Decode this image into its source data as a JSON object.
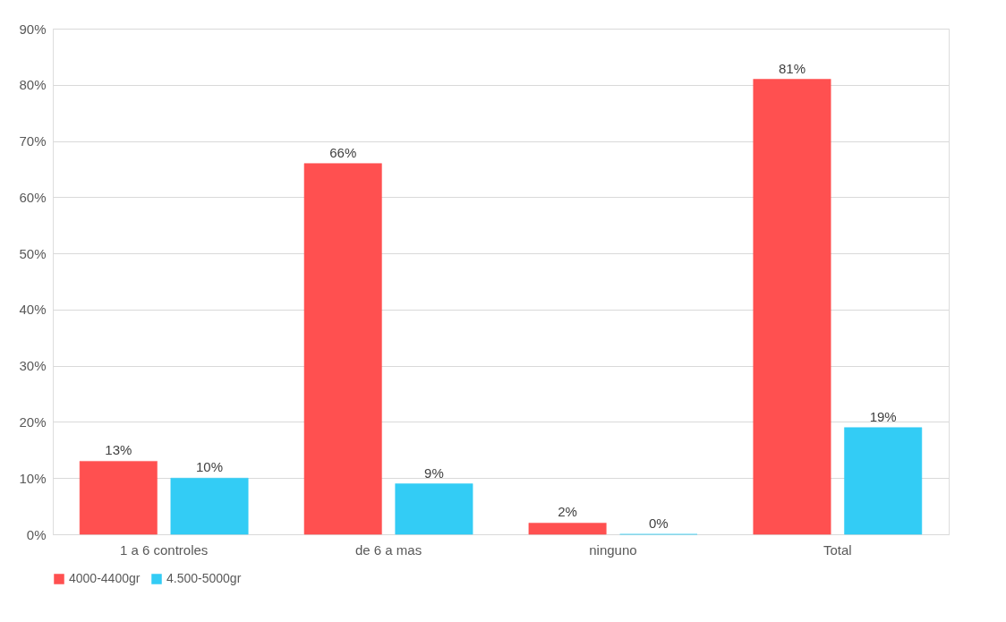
{
  "chart_data": {
    "type": "bar",
    "categories": [
      "1 a 6 controles",
      "de 6 a mas",
      "ninguno",
      "Total"
    ],
    "series": [
      {
        "name": "4000-4400gr",
        "color": "#ff5050",
        "values": [
          13,
          66,
          2,
          81
        ],
        "value_labels": [
          "13%",
          "66%",
          "2%",
          "81%"
        ]
      },
      {
        "name": "4.500-5000gr",
        "color": "#33ccf5",
        "values": [
          10,
          9,
          0,
          19
        ],
        "value_labels": [
          "10%",
          "9%",
          "0%",
          "19%"
        ]
      }
    ],
    "ylim": [
      0,
      90
    ],
    "yticks": [
      {
        "value": 0,
        "label": "0%"
      },
      {
        "value": 10,
        "label": "10%"
      },
      {
        "value": 20,
        "label": "20%"
      },
      {
        "value": 30,
        "label": "30%"
      },
      {
        "value": 40,
        "label": "40%"
      },
      {
        "value": 50,
        "label": "50%"
      },
      {
        "value": 60,
        "label": "60%"
      },
      {
        "value": 70,
        "label": "70%"
      },
      {
        "value": 80,
        "label": "80%"
      },
      {
        "value": 90,
        "label": "90%"
      }
    ],
    "grid": "y",
    "legend": "bottom"
  }
}
